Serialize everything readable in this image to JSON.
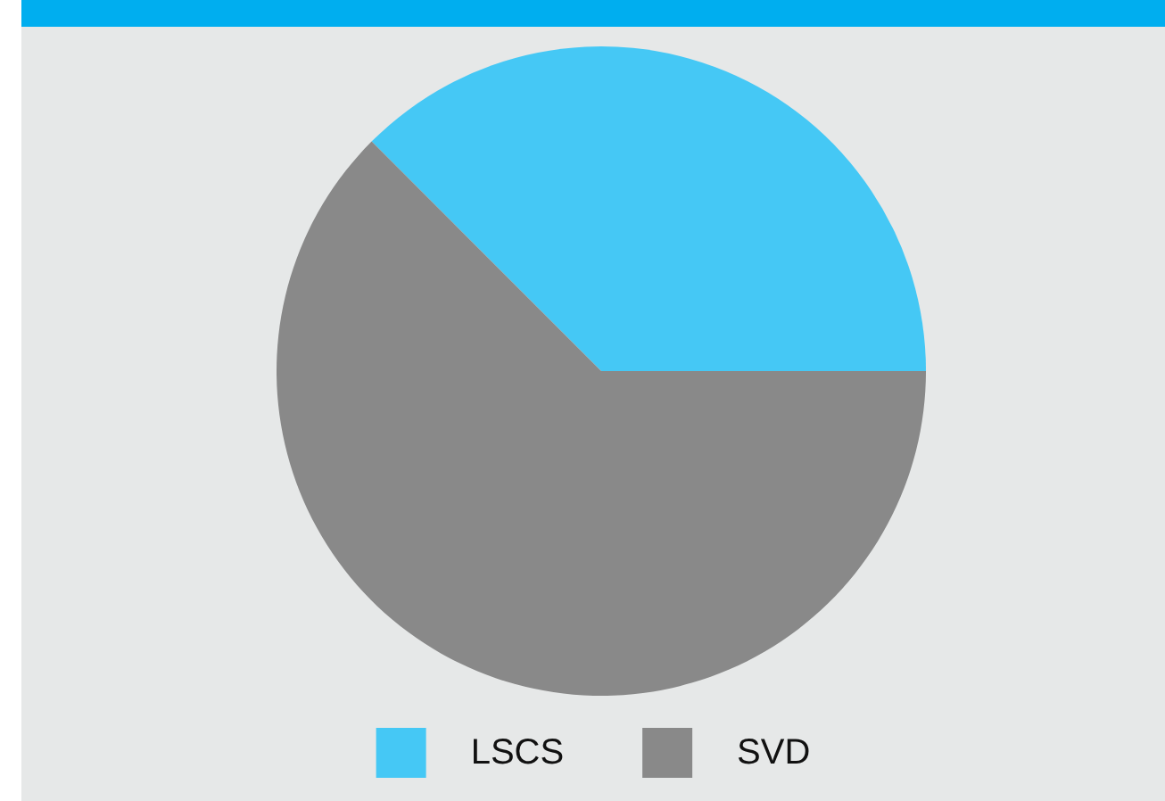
{
  "chart_data": {
    "type": "pie",
    "categories": [
      "LSCS",
      "SVD"
    ],
    "values": [
      37.5,
      62.5
    ],
    "colors": [
      "#45c8f5",
      "#898989"
    ],
    "legend": "bottom"
  }
}
